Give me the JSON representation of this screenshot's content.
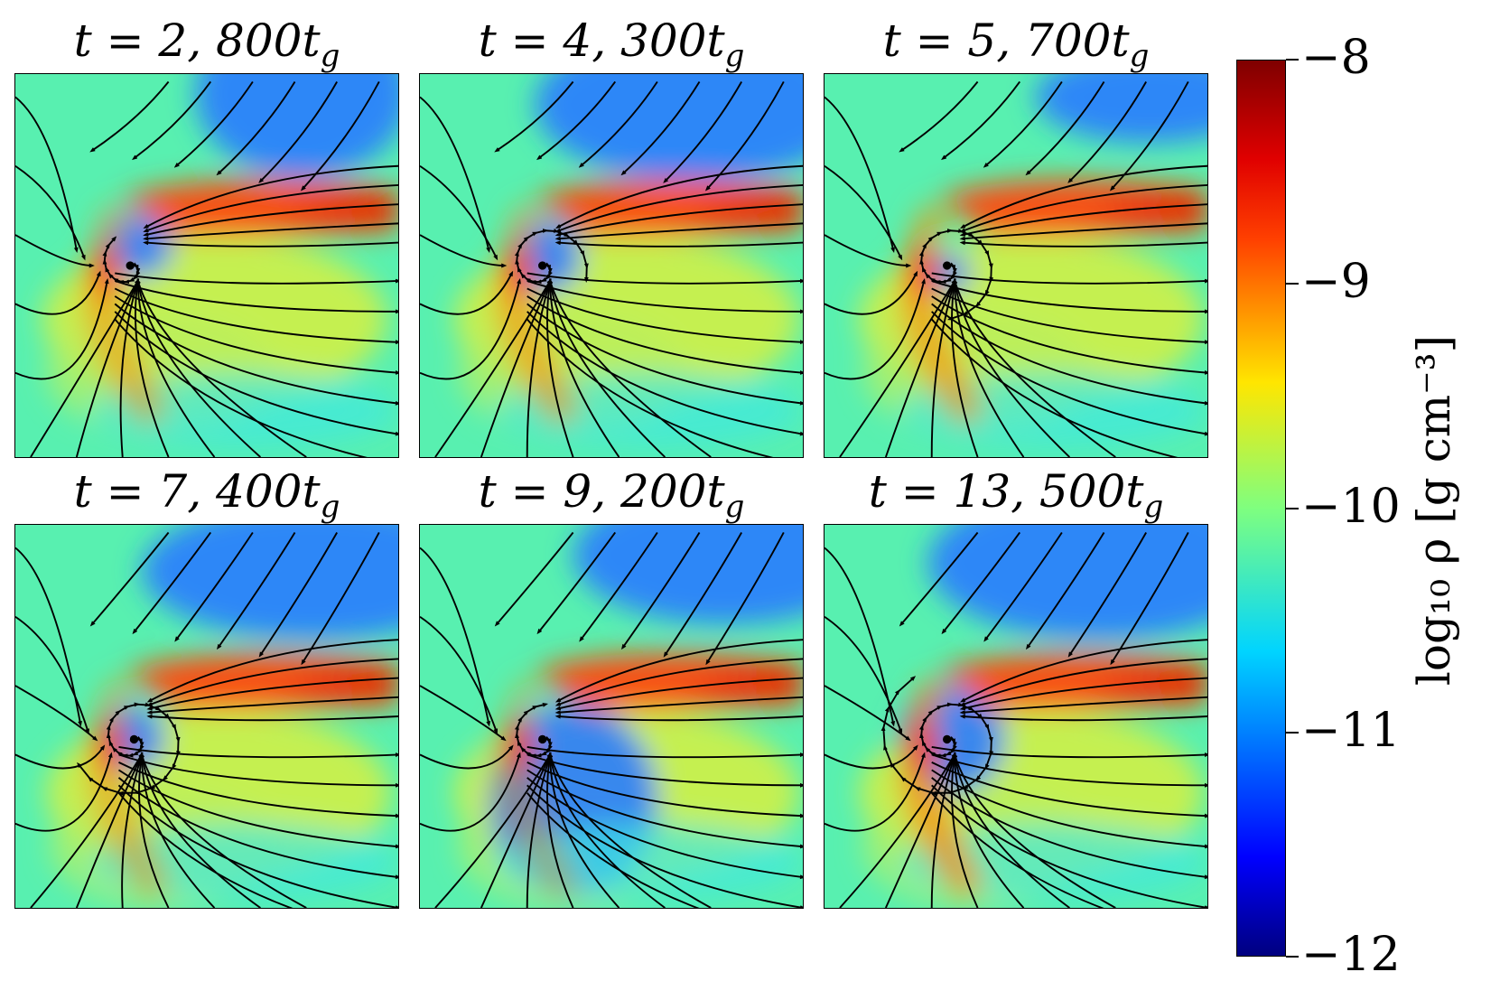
{
  "panels": [
    {
      "title": "t = 2, 800t",
      "title_sub": "g",
      "core": [
        0.3,
        0.5
      ],
      "vortex": 0.6,
      "shock": 0.55,
      "blue": [
        [
          0.75,
          0.05,
          0.28,
          0.22
        ],
        [
          0.32,
          0.45,
          0.09,
          0.08
        ]
      ]
    },
    {
      "title": "t = 4, 300t",
      "title_sub": "g",
      "core": [
        0.32,
        0.5
      ],
      "vortex": 1.0,
      "shock": 0.6,
      "blue": [
        [
          0.72,
          0.08,
          0.42,
          0.2
        ],
        [
          0.33,
          0.48,
          0.09,
          0.09
        ]
      ]
    },
    {
      "title": "t = 5, 700t",
      "title_sub": "g",
      "core": [
        0.32,
        0.5
      ],
      "vortex": 1.2,
      "shock": 0.65,
      "blue": [
        [
          0.85,
          0.06,
          0.3,
          0.12
        ],
        [
          0.33,
          0.52,
          0.05,
          0.05
        ]
      ]
    },
    {
      "title": "t = 7, 400t",
      "title_sub": "g",
      "core": [
        0.31,
        0.56
      ],
      "vortex": 1.4,
      "shock": 0.5,
      "blue": [
        [
          0.78,
          0.12,
          0.45,
          0.18
        ],
        [
          0.31,
          0.56,
          0.08,
          0.08
        ]
      ]
    },
    {
      "title": "t = 9, 200t",
      "title_sub": "g",
      "core": [
        0.32,
        0.56
      ],
      "vortex": 0.7,
      "shock": 0.4,
      "blue": [
        [
          0.8,
          0.08,
          0.4,
          0.18
        ],
        [
          0.4,
          0.72,
          0.22,
          0.25
        ]
      ]
    },
    {
      "title": "t = 13, 500t",
      "title_sub": "g",
      "core": [
        0.32,
        0.56
      ],
      "vortex": 1.6,
      "shock": 0.75,
      "blue": [
        [
          0.72,
          0.1,
          0.45,
          0.2
        ],
        [
          0.33,
          0.56,
          0.14,
          0.14
        ]
      ]
    }
  ],
  "colorbar": {
    "label": "log₁₀ ρ [g cm⁻³]",
    "ticks": [
      "−8",
      "−9",
      "−10",
      "−11",
      "−12"
    ],
    "range": [
      -12,
      -8
    ],
    "colormap": "jet",
    "colors": [
      "#00007f",
      "#0000ff",
      "#007fff",
      "#00ffff",
      "#7fff7f",
      "#ffff00",
      "#ff7f00",
      "#ff0000",
      "#7f0000"
    ]
  }
}
